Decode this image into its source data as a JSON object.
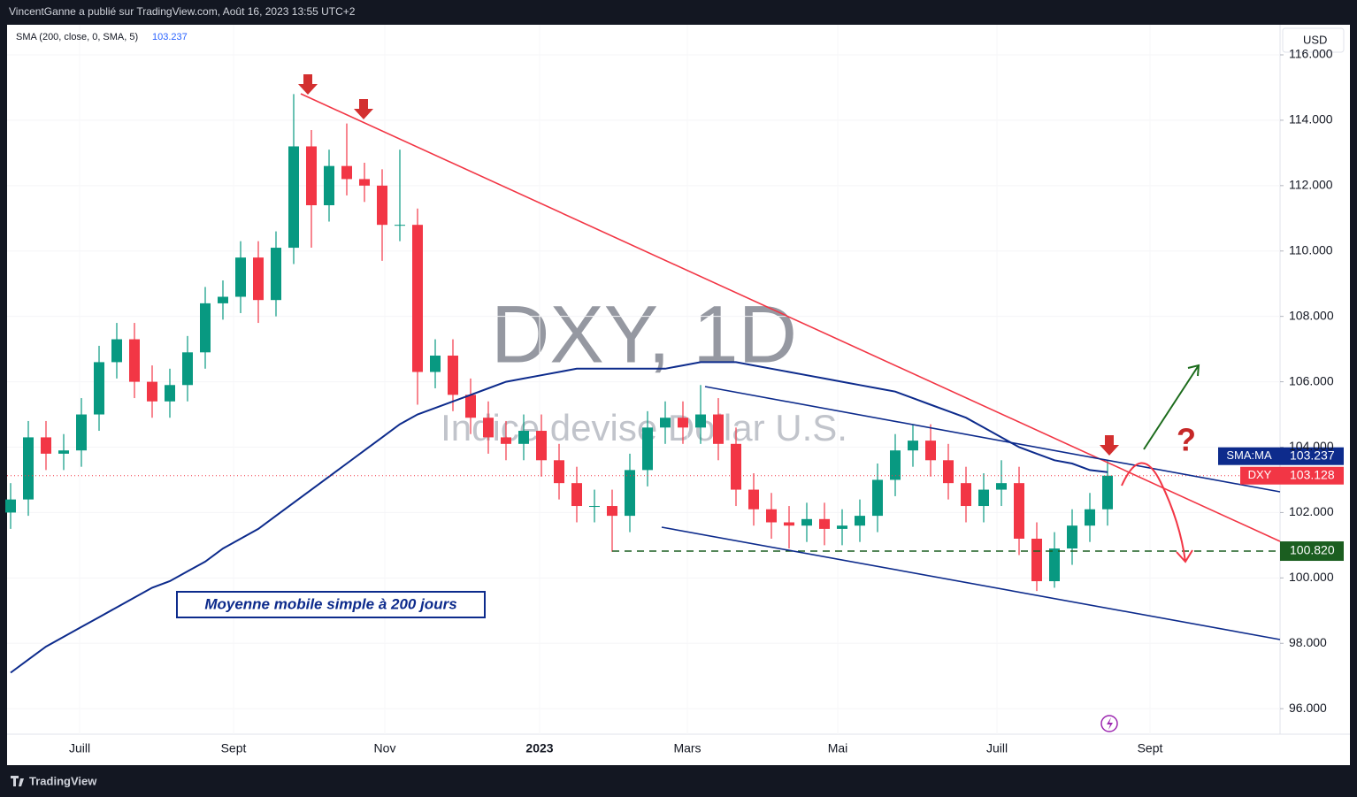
{
  "header": {
    "publisher": "VincentGanne a publié sur TradingView.com, Août 16, 2023 13:55 UTC+2"
  },
  "chart_data": {
    "type": "candlestick",
    "watermark": "DXY, 1D",
    "watermark_name": "Indice devise Dollar U.S.",
    "symbol": "DXY",
    "currency": "USD",
    "up_color": "#089981",
    "down_color": "#f23645",
    "open": [
      102.0,
      102.4,
      104.3,
      103.8,
      103.9,
      105.0,
      106.6,
      107.3,
      106.0,
      105.4,
      105.9,
      106.9,
      108.4,
      108.6,
      109.8,
      108.5,
      110.1,
      113.2,
      111.4,
      112.6,
      112.2,
      112.0,
      110.8,
      110.8,
      106.3,
      106.8,
      105.6,
      104.9,
      104.3,
      104.1,
      104.5,
      103.6,
      102.9,
      102.2,
      102.2,
      101.9,
      103.3,
      104.6,
      104.9,
      104.6,
      105.0,
      104.1,
      102.7,
      102.1,
      101.7,
      101.6,
      101.8,
      101.5,
      101.6,
      101.9,
      103.0,
      103.9,
      104.2,
      103.6,
      102.9,
      102.2,
      102.7,
      102.9,
      101.2,
      99.9,
      100.9,
      101.6,
      102.1
    ],
    "high": [
      102.9,
      104.8,
      104.8,
      104.4,
      105.5,
      107.1,
      107.8,
      107.8,
      106.5,
      106.4,
      107.4,
      108.9,
      109.1,
      110.3,
      110.3,
      110.6,
      114.8,
      113.7,
      113.1,
      113.9,
      112.7,
      112.5,
      113.1,
      111.3,
      107.3,
      107.3,
      106.1,
      105.4,
      104.8,
      105.0,
      105.0,
      104.1,
      103.4,
      102.7,
      102.7,
      103.8,
      105.1,
      105.4,
      105.4,
      105.9,
      105.5,
      104.6,
      103.2,
      102.6,
      102.2,
      102.3,
      102.3,
      102.1,
      102.4,
      103.5,
      104.4,
      104.7,
      104.7,
      104.1,
      103.4,
      103.2,
      103.6,
      103.4,
      101.7,
      101.4,
      102.1,
      102.6,
      103.6
    ],
    "low": [
      101.5,
      101.9,
      103.3,
      103.3,
      103.4,
      104.5,
      106.1,
      105.5,
      104.9,
      104.9,
      105.4,
      106.4,
      107.9,
      108.1,
      107.8,
      108.0,
      109.6,
      110.1,
      110.9,
      111.7,
      111.5,
      109.7,
      110.3,
      105.3,
      105.8,
      105.1,
      104.4,
      103.8,
      103.6,
      103.6,
      103.1,
      102.4,
      101.7,
      101.7,
      100.8,
      101.4,
      102.8,
      104.1,
      104.1,
      104.1,
      103.6,
      102.2,
      101.6,
      101.2,
      100.9,
      101.1,
      101.0,
      101.0,
      101.1,
      101.4,
      102.5,
      103.4,
      103.1,
      102.4,
      101.7,
      101.7,
      102.2,
      100.7,
      99.6,
      99.7,
      100.4,
      101.1,
      101.6
    ],
    "close": [
      102.4,
      104.3,
      103.8,
      103.9,
      105.0,
      106.6,
      107.3,
      106.0,
      105.4,
      105.9,
      106.9,
      108.4,
      108.6,
      109.8,
      108.5,
      110.1,
      113.2,
      111.4,
      112.6,
      112.2,
      112.0,
      110.8,
      110.8,
      106.3,
      106.8,
      105.6,
      104.9,
      104.3,
      104.1,
      104.5,
      103.6,
      102.9,
      102.2,
      102.2,
      101.9,
      103.3,
      104.6,
      104.9,
      104.6,
      105.0,
      104.1,
      102.7,
      102.1,
      101.7,
      101.6,
      101.8,
      101.5,
      101.6,
      101.9,
      103.0,
      103.9,
      104.2,
      103.6,
      102.9,
      102.2,
      102.7,
      102.9,
      101.2,
      99.9,
      100.9,
      101.6,
      102.1,
      103.128
    ],
    "sma": {
      "legend": "SMA (200, close, 0, SMA, 5)",
      "name": "SMA:MA",
      "color": "#0d2b8c",
      "values": [
        97.1,
        97.5,
        97.9,
        98.2,
        98.5,
        98.8,
        99.1,
        99.4,
        99.7,
        99.9,
        100.2,
        100.5,
        100.9,
        101.2,
        101.5,
        101.9,
        102.3,
        102.7,
        103.1,
        103.5,
        103.9,
        104.3,
        104.7,
        105.0,
        105.2,
        105.4,
        105.6,
        105.8,
        106.0,
        106.1,
        106.2,
        106.3,
        106.4,
        106.4,
        106.4,
        106.4,
        106.4,
        106.4,
        106.5,
        106.6,
        106.6,
        106.6,
        106.5,
        106.4,
        106.3,
        106.2,
        106.1,
        106.0,
        105.9,
        105.8,
        105.7,
        105.5,
        105.3,
        105.1,
        104.9,
        104.6,
        104.3,
        104.0,
        103.8,
        103.6,
        103.5,
        103.3,
        103.237
      ]
    },
    "support": {
      "value": 100.82,
      "label": "100.820",
      "color": "#1b5e20"
    },
    "xlim": [
      -0.6,
      71.75
    ],
    "ylim": [
      95.22,
      116.92
    ],
    "xticks": [
      {
        "value": 3.9,
        "label": "Juill"
      },
      {
        "value": 12.6,
        "label": "Sept"
      },
      {
        "value": 21.15,
        "label": "Nov"
      },
      {
        "value": 29.9,
        "label": "2023"
      },
      {
        "value": 38.25,
        "label": "Mars"
      },
      {
        "value": 46.75,
        "label": "Mai"
      },
      {
        "value": 55.75,
        "label": "Juill"
      },
      {
        "value": 64.4,
        "label": "Sept"
      }
    ],
    "yticks": [
      {
        "value": 96,
        "label": "96.000"
      },
      {
        "value": 98,
        "label": "98.000"
      },
      {
        "value": 100,
        "label": "100.000"
      },
      {
        "value": 102,
        "label": "102.000"
      },
      {
        "value": 104,
        "label": "104.000"
      },
      {
        "value": 106,
        "label": "106.000"
      },
      {
        "value": 108,
        "label": "108.000"
      },
      {
        "value": 110,
        "label": "110.000"
      },
      {
        "value": 112,
        "label": "112.000"
      },
      {
        "value": 114,
        "label": "114.000"
      },
      {
        "value": 116,
        "label": "116.000"
      }
    ],
    "annotations": {
      "sma_note": "Moyenne mobile simple à 200 jours",
      "question": "?"
    }
  },
  "footer": {
    "brand": "TradingView"
  }
}
